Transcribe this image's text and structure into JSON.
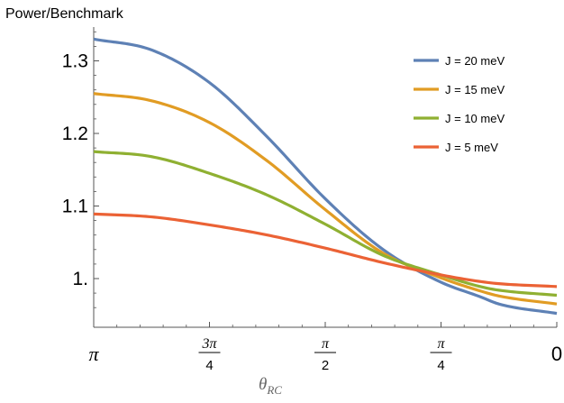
{
  "chart_data": {
    "type": "line",
    "ylabel": "Power/Benchmark",
    "xlabel_main": "θ",
    "xlabel_sub": "RC",
    "x_reversed": true,
    "xlim": [
      0,
      3.14159
    ],
    "ylim": [
      0.945,
      1.345
    ],
    "x_ticks": [
      {
        "value": 3.14159,
        "kind": "plain",
        "label": "π"
      },
      {
        "value": 2.35619,
        "kind": "frac",
        "num": "3π",
        "den": "4"
      },
      {
        "value": 1.5708,
        "kind": "frac",
        "num": "π",
        "den": "2"
      },
      {
        "value": 0.7854,
        "kind": "frac",
        "num": "π",
        "den": "4"
      },
      {
        "value": 0,
        "kind": "plain",
        "label": "0"
      }
    ],
    "y_ticks": [
      {
        "value": 1.0,
        "label": "1."
      },
      {
        "value": 1.1,
        "label": "1.1"
      },
      {
        "value": 1.2,
        "label": "1.2"
      },
      {
        "value": 1.3,
        "label": "1.3"
      }
    ],
    "y_minor_step": 0.02,
    "legend_position": "top-right",
    "series": [
      {
        "name": "J = 20 meV",
        "color": "#5E81B5",
        "x": [
          3.14159,
          2.7489,
          2.35619,
          1.9635,
          1.5708,
          1.1781,
          0.7854,
          0.52,
          0.3927,
          0
        ],
        "y": [
          1.33,
          1.315,
          1.27,
          1.195,
          1.11,
          1.04,
          0.995,
          0.975,
          0.965,
          0.952
        ]
      },
      {
        "name": "J = 15 meV",
        "color": "#E19C24",
        "x": [
          3.14159,
          2.7489,
          2.35619,
          1.9635,
          1.5708,
          1.1781,
          0.7854,
          0.52,
          0.3927,
          0
        ],
        "y": [
          1.255,
          1.245,
          1.215,
          1.162,
          1.095,
          1.035,
          1.001,
          0.983,
          0.976,
          0.965
        ]
      },
      {
        "name": "J = 10 meV",
        "color": "#8FB032",
        "x": [
          3.14159,
          2.7489,
          2.35619,
          1.9635,
          1.5708,
          1.1781,
          0.7854,
          0.52,
          0.3927,
          0
        ],
        "y": [
          1.175,
          1.168,
          1.145,
          1.115,
          1.075,
          1.032,
          1.005,
          0.989,
          0.984,
          0.977
        ]
      },
      {
        "name": "J = 5 meV",
        "color": "#EB6235",
        "x": [
          3.14159,
          2.7489,
          2.35619,
          1.9635,
          1.5708,
          1.1781,
          0.7854,
          0.52,
          0.3927,
          0
        ],
        "y": [
          1.089,
          1.085,
          1.074,
          1.06,
          1.042,
          1.022,
          1.005,
          0.996,
          0.993,
          0.989
        ]
      }
    ]
  }
}
